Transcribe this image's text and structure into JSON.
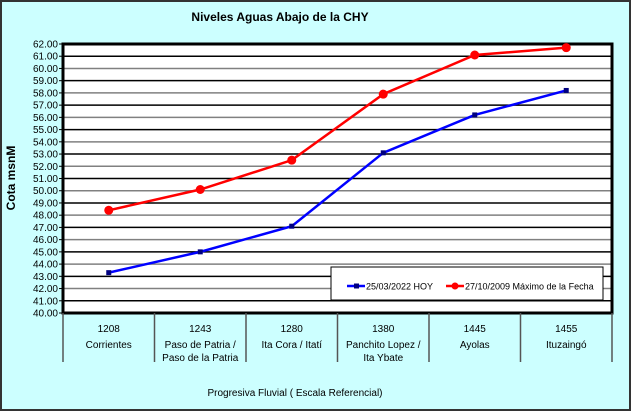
{
  "chart_data": {
    "type": "line",
    "title": "Niveles Aguas Abajo de la CHY",
    "xlabel": "Progresiva Fluvial ( Escala Referencial)",
    "ylabel": "Cota msnM",
    "ylim": [
      40,
      62
    ],
    "ystep": 1,
    "grid": true,
    "legend_position": "bottom-right",
    "categories": [
      {
        "km": "1208",
        "name": [
          "Corrientes"
        ]
      },
      {
        "km": "1243",
        "name": [
          "Paso de Patria /",
          "Paso de la Patria"
        ]
      },
      {
        "km": "1280",
        "name": [
          "Ita Cora / Itatí"
        ]
      },
      {
        "km": "1380",
        "name": [
          "Panchito Lopez /",
          "Ita Ybate"
        ]
      },
      {
        "km": "1445",
        "name": [
          "Ayolas"
        ]
      },
      {
        "km": "1455",
        "name": [
          "Ituzaingó"
        ]
      }
    ],
    "series": [
      {
        "name": "25/03/2022 HOY",
        "color": "#0000ff",
        "values": [
          43.3,
          45.0,
          47.1,
          53.1,
          56.2,
          58.2
        ]
      },
      {
        "name": "27/10/2009 Máximo de la Fecha",
        "color": "#ff0000",
        "values": [
          48.4,
          50.1,
          52.5,
          57.9,
          61.1,
          61.7
        ]
      }
    ]
  }
}
